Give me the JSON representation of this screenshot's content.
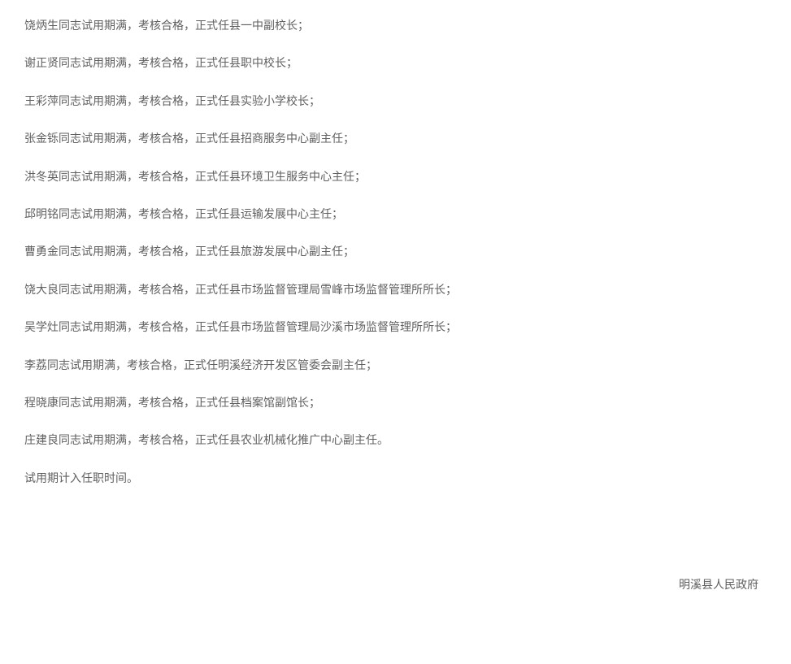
{
  "document": {
    "text_color": "#606060",
    "background_color": "#ffffff",
    "font_size": 14,
    "line_spacing": 24,
    "lines": [
      "饶炳生同志试用期满，考核合格，正式任县一中副校长；",
      "谢正贤同志试用期满，考核合格，正式任县职中校长；",
      "王彩萍同志试用期满，考核合格，正式任县实验小学校长；",
      "张金铄同志试用期满，考核合格，正式任县招商服务中心副主任；",
      "洪冬英同志试用期满，考核合格，正式任县环境卫生服务中心主任；",
      "邱明铭同志试用期满，考核合格，正式任县运输发展中心主任；",
      "曹勇金同志试用期满，考核合格，正式任县旅游发展中心副主任；",
      "饶大良同志试用期满，考核合格，正式任县市场监督管理局雪峰市场监督管理所所长；",
      "吴学灶同志试用期满，考核合格，正式任县市场监督管理局沙溪市场监督管理所所长；",
      "李荔同志试用期满，考核合格，正式任明溪经济开发区管委会副主任；",
      "程晓康同志试用期满，考核合格，正式任县档案馆副馆长；",
      "庄建良同志试用期满，考核合格，正式任县农业机械化推广中心副主任。",
      "试用期计入任职时间。"
    ],
    "signature": "明溪县人民政府"
  }
}
